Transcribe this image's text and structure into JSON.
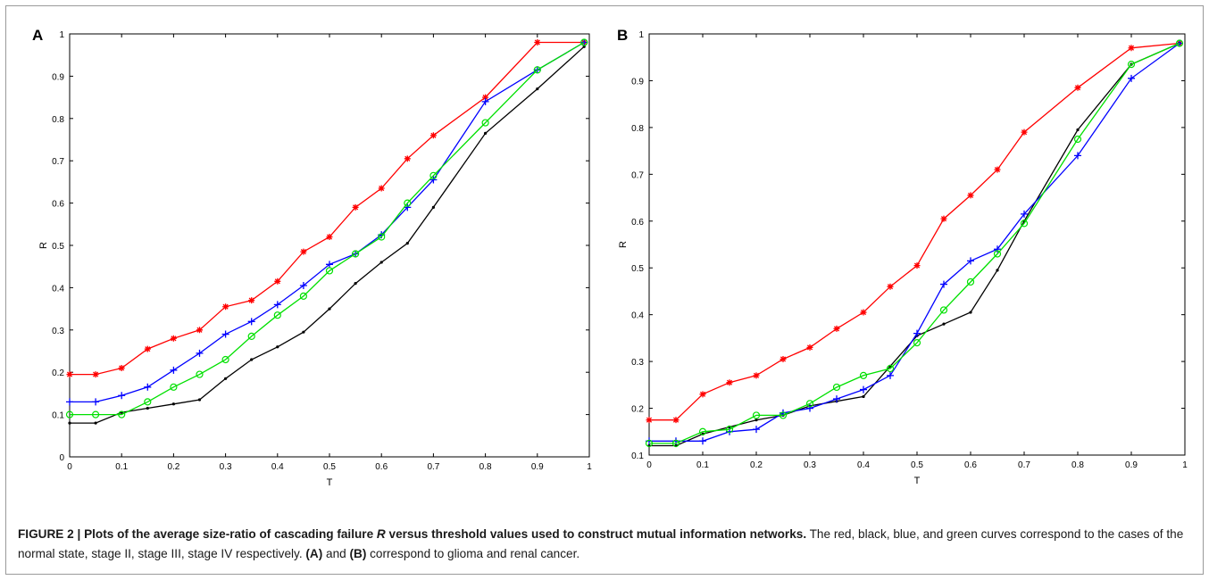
{
  "caption": {
    "fig_label": "FIGURE 2 | ",
    "title": "Plots of the average size-ratio of cascading failure ",
    "title_italic": "R",
    "title_end": " versus threshold values used to construct mutual information networks.",
    "body_1": " The red, black, blue, and green curves correspond to the cases of the normal state, stage II, stage III, stage IV respectively. ",
    "ref_a": "(A)",
    "body_2": " and ",
    "ref_b": "(B)",
    "body_3": " correspond to glioma and renal cancer."
  },
  "chart_data": [
    {
      "panel": "A",
      "type": "line",
      "xlabel": "T",
      "ylabel": "R",
      "xlim": [
        0,
        1
      ],
      "ylim": [
        0,
        1
      ],
      "xticks": [
        "0",
        "0.1",
        "0.2",
        "0.3",
        "0.4",
        "0.5",
        "0.6",
        "0.7",
        "0.8",
        "0.9",
        "1"
      ],
      "yticks": [
        "0",
        "0.1",
        "0.2",
        "0.3",
        "0.4",
        "0.5",
        "0.6",
        "0.7",
        "0.8",
        "0.9",
        "1"
      ],
      "x": [
        0,
        0.05,
        0.1,
        0.15,
        0.2,
        0.25,
        0.3,
        0.35,
        0.4,
        0.45,
        0.5,
        0.55,
        0.6,
        0.65,
        0.7,
        0.8,
        0.9,
        0.99
      ],
      "series": [
        {
          "color": "#ff0000",
          "marker": "star",
          "values": [
            0.195,
            0.195,
            0.21,
            0.255,
            0.28,
            0.3,
            0.355,
            0.37,
            0.415,
            0.485,
            0.52,
            0.59,
            0.635,
            0.705,
            0.76,
            0.85,
            0.98,
            0.98
          ]
        },
        {
          "color": "#000000",
          "marker": "dot",
          "values": [
            0.08,
            0.08,
            0.105,
            0.115,
            0.125,
            0.135,
            0.185,
            0.23,
            0.26,
            0.295,
            0.35,
            0.41,
            0.46,
            0.505,
            0.59,
            0.765,
            0.87,
            0.97
          ]
        },
        {
          "color": "#0000ff",
          "marker": "plus",
          "values": [
            0.13,
            0.13,
            0.145,
            0.165,
            0.205,
            0.245,
            0.29,
            0.32,
            0.36,
            0.405,
            0.455,
            0.48,
            0.525,
            0.59,
            0.655,
            0.84,
            0.915,
            0.98
          ]
        },
        {
          "color": "#00e000",
          "marker": "circle",
          "values": [
            0.1,
            0.1,
            0.1,
            0.13,
            0.165,
            0.195,
            0.23,
            0.285,
            0.335,
            0.38,
            0.44,
            0.48,
            0.52,
            0.6,
            0.665,
            0.79,
            0.915,
            0.98
          ]
        }
      ]
    },
    {
      "panel": "B",
      "type": "line",
      "xlabel": "T",
      "ylabel": "R",
      "xlim": [
        0,
        1
      ],
      "ylim": [
        0.1,
        1
      ],
      "xticks": [
        "0",
        "0.1",
        "0.2",
        "0.3",
        "0.4",
        "0.5",
        "0.6",
        "0.7",
        "0.8",
        "0.9",
        "1"
      ],
      "yticks": [
        "0.1",
        "0.2",
        "0.3",
        "0.4",
        "0.5",
        "0.6",
        "0.7",
        "0.8",
        "0.9",
        "1"
      ],
      "x": [
        0,
        0.05,
        0.1,
        0.15,
        0.2,
        0.25,
        0.3,
        0.35,
        0.4,
        0.45,
        0.5,
        0.55,
        0.6,
        0.65,
        0.7,
        0.8,
        0.9,
        0.99
      ],
      "series": [
        {
          "color": "#ff0000",
          "marker": "star",
          "values": [
            0.175,
            0.175,
            0.23,
            0.255,
            0.27,
            0.305,
            0.33,
            0.37,
            0.405,
            0.46,
            0.505,
            0.605,
            0.655,
            0.71,
            0.79,
            0.885,
            0.97,
            0.98
          ]
        },
        {
          "color": "#000000",
          "marker": "dot",
          "values": [
            0.12,
            0.12,
            0.145,
            0.16,
            0.175,
            0.185,
            0.205,
            0.215,
            0.225,
            0.29,
            0.355,
            0.38,
            0.405,
            0.495,
            0.6,
            0.795,
            0.935,
            0.98
          ]
        },
        {
          "color": "#0000ff",
          "marker": "plus",
          "values": [
            0.13,
            0.13,
            0.13,
            0.15,
            0.155,
            0.19,
            0.2,
            0.22,
            0.24,
            0.27,
            0.36,
            0.465,
            0.515,
            0.54,
            0.615,
            0.74,
            0.905,
            0.98
          ]
        },
        {
          "color": "#00e000",
          "marker": "circle",
          "values": [
            0.125,
            0.125,
            0.15,
            0.155,
            0.185,
            0.185,
            0.21,
            0.245,
            0.27,
            0.285,
            0.34,
            0.41,
            0.47,
            0.53,
            0.595,
            0.775,
            0.935,
            0.98
          ]
        }
      ]
    }
  ]
}
